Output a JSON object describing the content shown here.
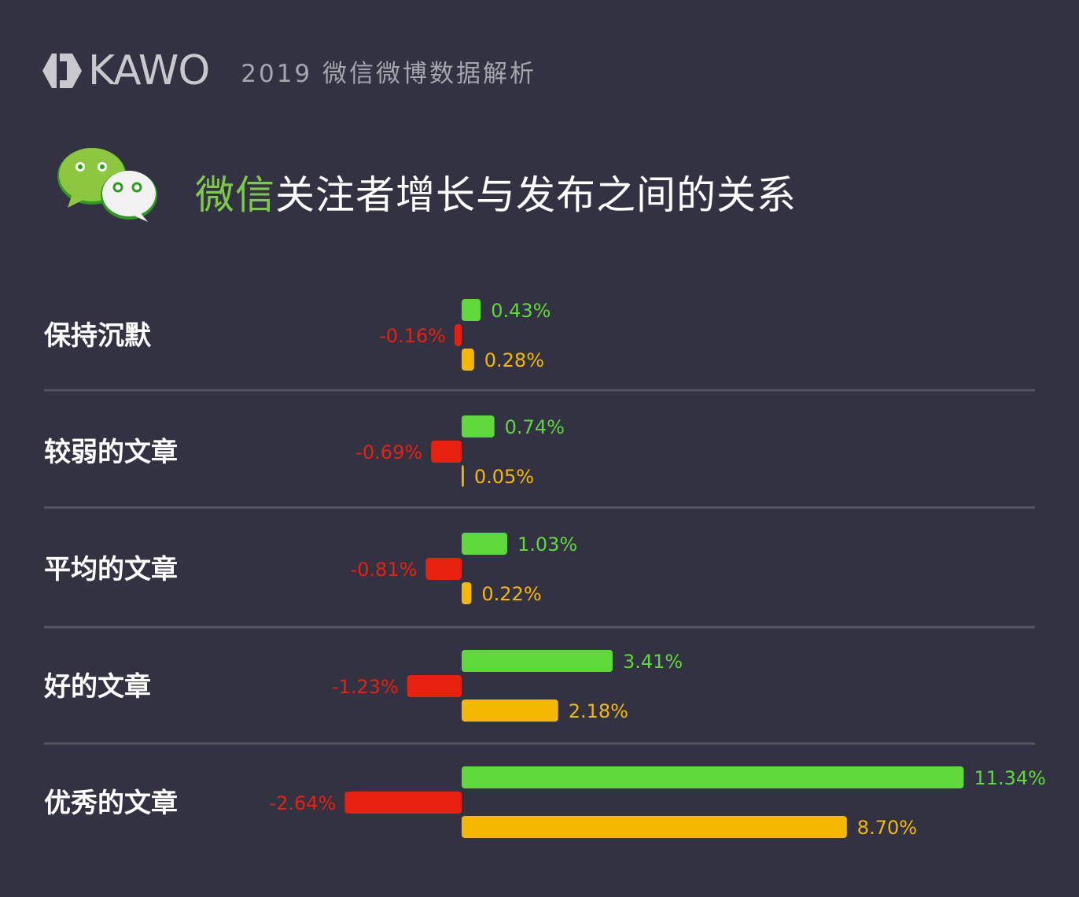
{
  "header": {
    "brand": "KAWO",
    "report_title": "2019 微信微博数据解析"
  },
  "title": {
    "accent": "微信",
    "rest": "关注者增长与发布之间的关系"
  },
  "colors": {
    "background": "#333243",
    "green": "#5fd93a",
    "red": "#e8200f",
    "yellow": "#f5b800",
    "divider": "#55545f"
  },
  "icons": [
    "kawo-logo-icon",
    "wechat-logo-icon"
  ],
  "chart_data": {
    "type": "bar",
    "orientation": "horizontal",
    "categories": [
      "保持沉默",
      "较弱的文章",
      "平均的文章",
      "好的文章",
      "优秀的文章"
    ],
    "series": [
      {
        "color": "green",
        "values": [
          0.43,
          0.74,
          1.03,
          3.41,
          11.34
        ],
        "labels": [
          "0.43%",
          "0.74%",
          "1.03%",
          "3.41%",
          "11.34%"
        ]
      },
      {
        "color": "red",
        "values": [
          -0.16,
          -0.69,
          -0.81,
          -1.23,
          -2.64
        ],
        "labels": [
          "-0.16%",
          "-0.69%",
          "-0.81%",
          "-1.23%",
          "-2.64%"
        ]
      },
      {
        "color": "yellow",
        "values": [
          0.28,
          0.05,
          0.22,
          2.18,
          8.7
        ],
        "labels": [
          "0.28%",
          "0.05%",
          "0.22%",
          "2.18%",
          "8.70%"
        ]
      }
    ],
    "unit": "%",
    "grid": false,
    "legend": "none"
  }
}
